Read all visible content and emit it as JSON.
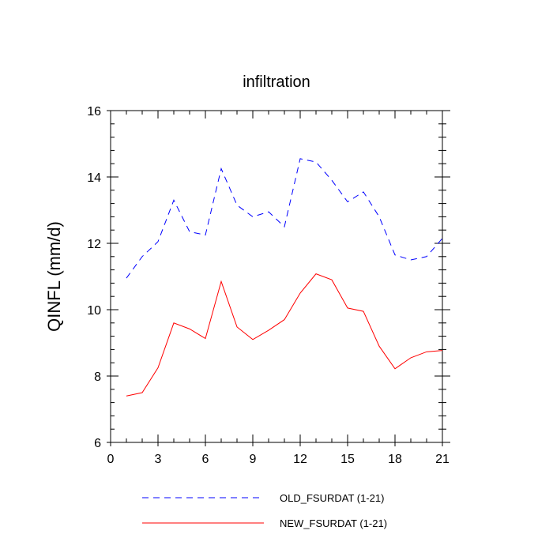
{
  "chart_data": {
    "type": "line",
    "title": "infiltration",
    "xlabel": "",
    "ylabel": "QINFL  (mm/d)",
    "xlim": [
      0,
      21
    ],
    "ylim": [
      6,
      16
    ],
    "xticks": [
      0,
      3,
      6,
      9,
      12,
      15,
      18,
      21
    ],
    "yticks": [
      6,
      8,
      10,
      12,
      14,
      16
    ],
    "x": [
      1,
      2,
      3,
      4,
      5,
      6,
      7,
      8,
      9,
      10,
      11,
      12,
      13,
      14,
      15,
      16,
      17,
      18,
      19,
      20,
      21
    ],
    "series": [
      {
        "name": "OLD_FSURDAT (1-21)",
        "color": "#0000ff",
        "style": "dashed",
        "values": [
          10.95,
          11.6,
          12.05,
          13.3,
          12.35,
          12.25,
          14.25,
          13.15,
          12.8,
          12.95,
          12.5,
          14.55,
          14.45,
          13.9,
          13.25,
          13.55,
          12.8,
          11.65,
          11.5,
          11.6,
          12.15
        ]
      },
      {
        "name": "NEW_FSURDAT (1-21)",
        "color": "#ff0000",
        "style": "solid",
        "values": [
          7.4,
          7.5,
          8.25,
          9.6,
          9.42,
          9.13,
          10.85,
          9.48,
          9.1,
          9.38,
          9.7,
          10.5,
          11.08,
          10.9,
          10.05,
          9.95,
          8.9,
          8.22,
          8.55,
          8.73,
          8.77
        ]
      }
    ],
    "grid": false,
    "legend": "bottom"
  }
}
